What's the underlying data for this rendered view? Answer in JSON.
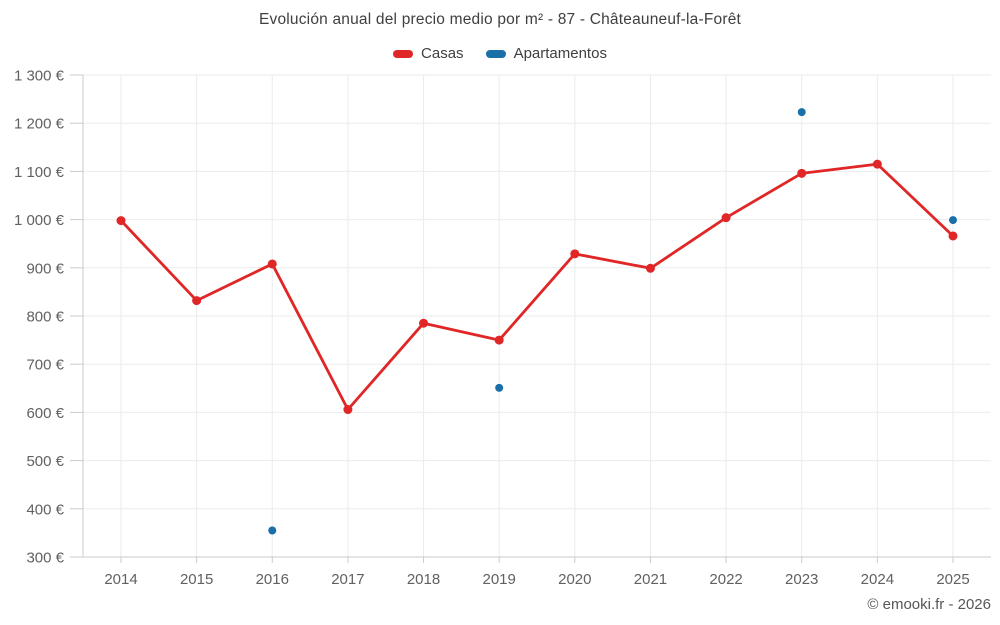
{
  "chart": {
    "title": "Evolución anual del precio medio por m² - 87 - Châteauneuf-la-Forêt",
    "copyright": "© emooki.fr - 2026",
    "colors": {
      "casas": "#e02626",
      "apartamentos": "#1a6fa8",
      "grid": "#ebebeb",
      "axis": "#cbcbcb",
      "axis_label": "#616161",
      "title_text": "#3f3f3f",
      "background": "#ffffff"
    }
  },
  "chart_data": {
    "type": "line",
    "title": "Evolución anual del precio medio por m² - 87 - Châteauneuf-la-Forêt",
    "x": [
      2014,
      2015,
      2016,
      2017,
      2018,
      2019,
      2020,
      2021,
      2022,
      2023,
      2024,
      2025
    ],
    "series": [
      {
        "name": "Casas",
        "type": "line",
        "color": "#e02626",
        "values": [
          998,
          832,
          908,
          606,
          785,
          750,
          929,
          899,
          1004,
          1096,
          1115,
          966
        ]
      },
      {
        "name": "Apartamentos",
        "type": "scatter",
        "color": "#1a6fa8",
        "values": [
          null,
          null,
          355,
          null,
          null,
          651,
          null,
          null,
          null,
          1223,
          null,
          999
        ]
      }
    ],
    "xlabel": "",
    "ylabel": "",
    "ylim": [
      300,
      1300
    ],
    "ytick_step": 100,
    "ytick_labels": [
      "300 €",
      "400 €",
      "500 €",
      "600 €",
      "700 €",
      "800 €",
      "900 €",
      "1 000 €",
      "1 100 €",
      "1 200 €",
      "1 300 €"
    ],
    "grid": true,
    "legend_position": "top",
    "unit": "€"
  }
}
